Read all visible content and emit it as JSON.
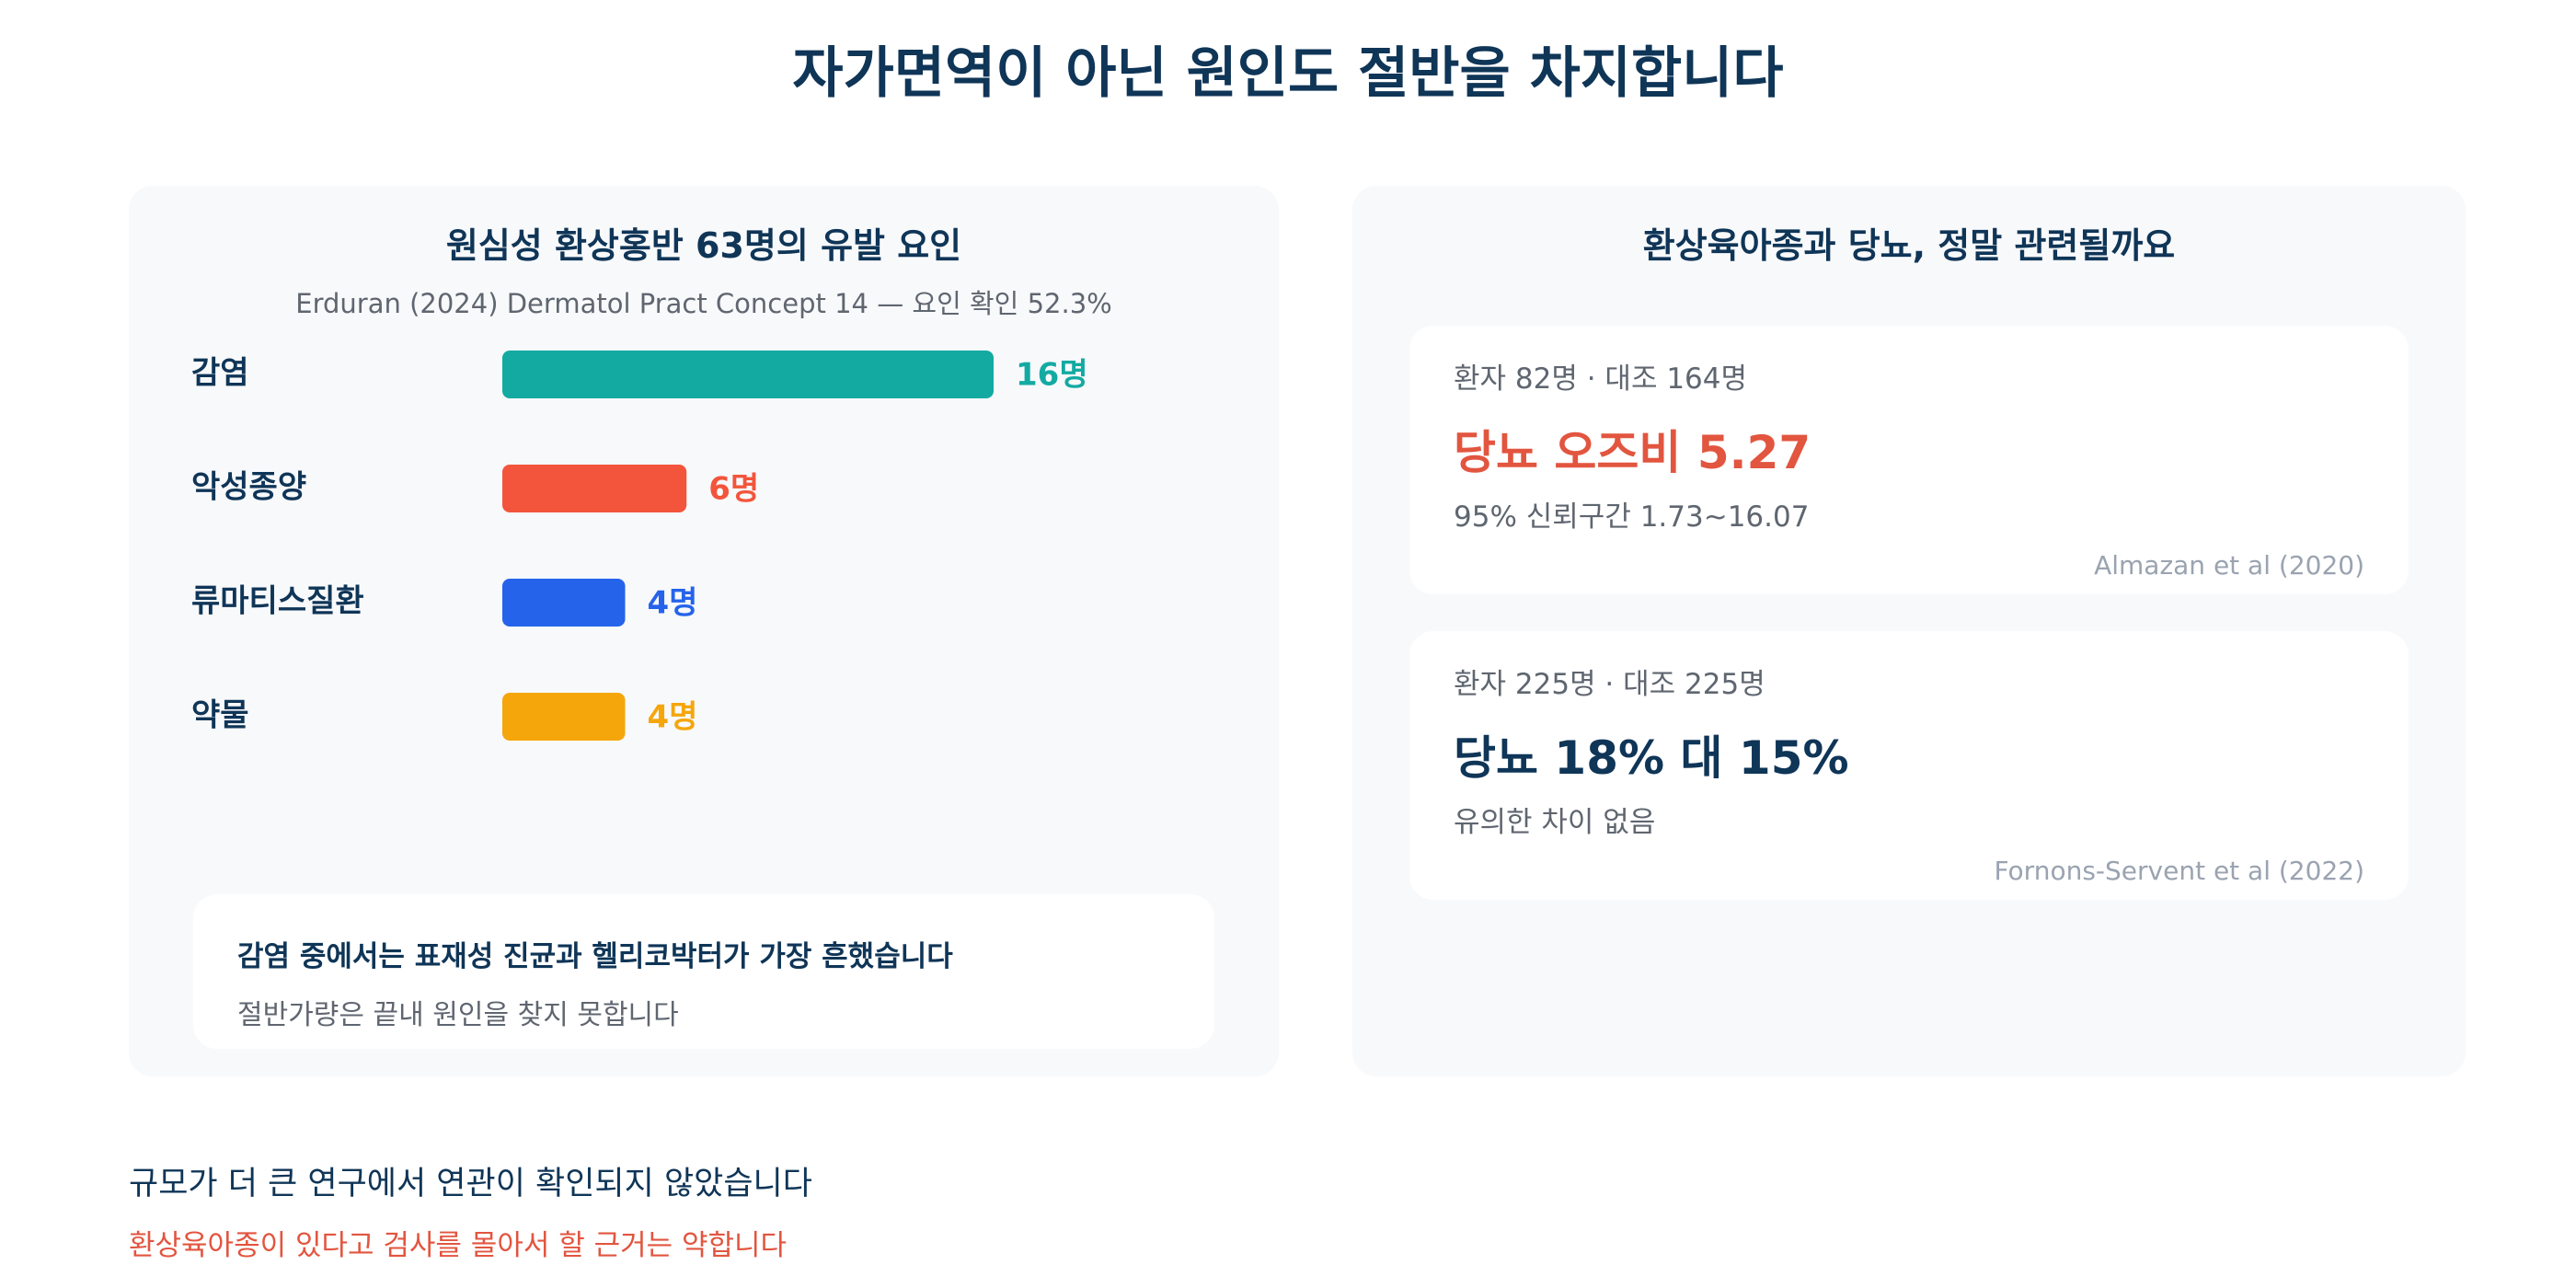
{
  "page": {
    "title": "자가면역이 아닌 원인도 절반을 차지합니다"
  },
  "left_panel": {
    "title": "원심성 환상홍반 63명의 유발 요인",
    "subtitle": "Erduran (2024) Dermatol Pract Concept 14 — 요인 확인 52.3%",
    "note": {
      "headline": "감염 중에서는 표재성 진균과 헬리코박터가 가장 흔했습니다",
      "sub": "절반가량은 끝내 원인을 찾지 못합니다"
    }
  },
  "chart_data": {
    "type": "bar",
    "orientation": "horizontal",
    "title": "원심성 환상홍반 63명의 유발 요인",
    "subtitle": "Erduran (2024) Dermatol Pract Concept 14 — 요인 확인 52.3%",
    "categories": [
      "감염",
      "악성종양",
      "류마티스질환",
      "약물"
    ],
    "values": [
      16,
      6,
      4,
      4
    ],
    "value_labels": [
      "16명",
      "6명",
      "4명",
      "4명"
    ],
    "colors": [
      "#13aaa2",
      "#f2553c",
      "#2563eb",
      "#f5a60b"
    ],
    "xlim": [
      0,
      16
    ],
    "grid": false,
    "legend": "none"
  },
  "right_panel": {
    "title": "환상육아종과 당뇨, 정말 관련될까요",
    "studies": [
      {
        "counts": "환자 82명 · 대조 164명",
        "value": "당뇨 오즈비 5.27",
        "value_color": "#e2553f",
        "detail": "95% 신뢰구간 1.73~16.07",
        "citation": "Almazan et al (2020)"
      },
      {
        "counts": "환자 225명 · 대조 225명",
        "value": "당뇨 18% 대 15%",
        "value_color": "#0f3557",
        "detail": "유의한 차이 없음",
        "citation": "Fornons-Servent et al (2022)"
      }
    ]
  },
  "footer": {
    "main": "규모가 더 큰 연구에서 연관이 확인되지 않았습니다",
    "warning": "환상육아종이 있다고 검사를 몰아서 할 근거는 약합니다"
  }
}
